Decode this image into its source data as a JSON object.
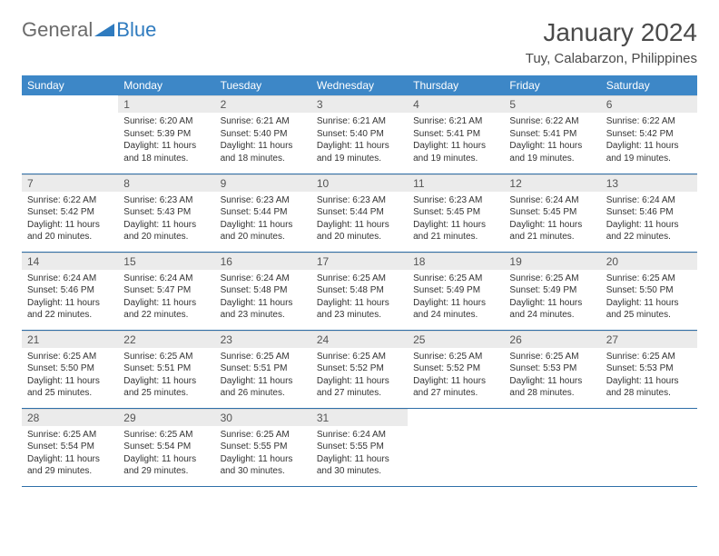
{
  "logo": {
    "text1": "General",
    "text2": "Blue"
  },
  "title": "January 2024",
  "location": "Tuy, Calabarzon, Philippines",
  "colors": {
    "header_bg": "#3d87c7",
    "header_text": "#ffffff",
    "daynum_bg": "#ebebeb",
    "row_border": "#2f6fa8",
    "logo_gray": "#6b6b6b",
    "logo_blue": "#2f7bbf",
    "body_text": "#333333"
  },
  "headers": [
    "Sunday",
    "Monday",
    "Tuesday",
    "Wednesday",
    "Thursday",
    "Friday",
    "Saturday"
  ],
  "first_weekday": 1,
  "days": [
    {
      "n": 1,
      "sr": "6:20 AM",
      "ss": "5:39 PM",
      "dl": "11 hours and 18 minutes."
    },
    {
      "n": 2,
      "sr": "6:21 AM",
      "ss": "5:40 PM",
      "dl": "11 hours and 18 minutes."
    },
    {
      "n": 3,
      "sr": "6:21 AM",
      "ss": "5:40 PM",
      "dl": "11 hours and 19 minutes."
    },
    {
      "n": 4,
      "sr": "6:21 AM",
      "ss": "5:41 PM",
      "dl": "11 hours and 19 minutes."
    },
    {
      "n": 5,
      "sr": "6:22 AM",
      "ss": "5:41 PM",
      "dl": "11 hours and 19 minutes."
    },
    {
      "n": 6,
      "sr": "6:22 AM",
      "ss": "5:42 PM",
      "dl": "11 hours and 19 minutes."
    },
    {
      "n": 7,
      "sr": "6:22 AM",
      "ss": "5:42 PM",
      "dl": "11 hours and 20 minutes."
    },
    {
      "n": 8,
      "sr": "6:23 AM",
      "ss": "5:43 PM",
      "dl": "11 hours and 20 minutes."
    },
    {
      "n": 9,
      "sr": "6:23 AM",
      "ss": "5:44 PM",
      "dl": "11 hours and 20 minutes."
    },
    {
      "n": 10,
      "sr": "6:23 AM",
      "ss": "5:44 PM",
      "dl": "11 hours and 20 minutes."
    },
    {
      "n": 11,
      "sr": "6:23 AM",
      "ss": "5:45 PM",
      "dl": "11 hours and 21 minutes."
    },
    {
      "n": 12,
      "sr": "6:24 AM",
      "ss": "5:45 PM",
      "dl": "11 hours and 21 minutes."
    },
    {
      "n": 13,
      "sr": "6:24 AM",
      "ss": "5:46 PM",
      "dl": "11 hours and 22 minutes."
    },
    {
      "n": 14,
      "sr": "6:24 AM",
      "ss": "5:46 PM",
      "dl": "11 hours and 22 minutes."
    },
    {
      "n": 15,
      "sr": "6:24 AM",
      "ss": "5:47 PM",
      "dl": "11 hours and 22 minutes."
    },
    {
      "n": 16,
      "sr": "6:24 AM",
      "ss": "5:48 PM",
      "dl": "11 hours and 23 minutes."
    },
    {
      "n": 17,
      "sr": "6:25 AM",
      "ss": "5:48 PM",
      "dl": "11 hours and 23 minutes."
    },
    {
      "n": 18,
      "sr": "6:25 AM",
      "ss": "5:49 PM",
      "dl": "11 hours and 24 minutes."
    },
    {
      "n": 19,
      "sr": "6:25 AM",
      "ss": "5:49 PM",
      "dl": "11 hours and 24 minutes."
    },
    {
      "n": 20,
      "sr": "6:25 AM",
      "ss": "5:50 PM",
      "dl": "11 hours and 25 minutes."
    },
    {
      "n": 21,
      "sr": "6:25 AM",
      "ss": "5:50 PM",
      "dl": "11 hours and 25 minutes."
    },
    {
      "n": 22,
      "sr": "6:25 AM",
      "ss": "5:51 PM",
      "dl": "11 hours and 25 minutes."
    },
    {
      "n": 23,
      "sr": "6:25 AM",
      "ss": "5:51 PM",
      "dl": "11 hours and 26 minutes."
    },
    {
      "n": 24,
      "sr": "6:25 AM",
      "ss": "5:52 PM",
      "dl": "11 hours and 27 minutes."
    },
    {
      "n": 25,
      "sr": "6:25 AM",
      "ss": "5:52 PM",
      "dl": "11 hours and 27 minutes."
    },
    {
      "n": 26,
      "sr": "6:25 AM",
      "ss": "5:53 PM",
      "dl": "11 hours and 28 minutes."
    },
    {
      "n": 27,
      "sr": "6:25 AM",
      "ss": "5:53 PM",
      "dl": "11 hours and 28 minutes."
    },
    {
      "n": 28,
      "sr": "6:25 AM",
      "ss": "5:54 PM",
      "dl": "11 hours and 29 minutes."
    },
    {
      "n": 29,
      "sr": "6:25 AM",
      "ss": "5:54 PM",
      "dl": "11 hours and 29 minutes."
    },
    {
      "n": 30,
      "sr": "6:25 AM",
      "ss": "5:55 PM",
      "dl": "11 hours and 30 minutes."
    },
    {
      "n": 31,
      "sr": "6:24 AM",
      "ss": "5:55 PM",
      "dl": "11 hours and 30 minutes."
    }
  ],
  "labels": {
    "sunrise": "Sunrise:",
    "sunset": "Sunset:",
    "daylight": "Daylight:"
  }
}
